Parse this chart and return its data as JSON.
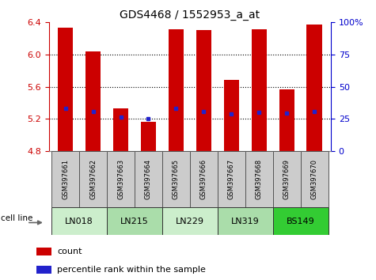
{
  "title": "GDS4468 / 1552953_a_at",
  "samples": [
    "GSM397661",
    "GSM397662",
    "GSM397663",
    "GSM397664",
    "GSM397665",
    "GSM397666",
    "GSM397667",
    "GSM397668",
    "GSM397669",
    "GSM397670"
  ],
  "cell_lines": [
    "LN018",
    "LN215",
    "LN229",
    "LN319",
    "BS149"
  ],
  "cell_line_groups": [
    2,
    2,
    2,
    2,
    2
  ],
  "bar_bottom": 4.8,
  "count_values": [
    6.33,
    6.04,
    5.33,
    5.17,
    6.31,
    6.3,
    5.69,
    6.31,
    5.57,
    6.37
  ],
  "percentile_values": [
    5.33,
    5.29,
    5.22,
    5.2,
    5.33,
    5.29,
    5.26,
    5.28,
    5.27,
    5.29
  ],
  "ylim_left": [
    4.8,
    6.4
  ],
  "yticks_left": [
    4.8,
    5.2,
    5.6,
    6.0,
    6.4
  ],
  "yticks_right": [
    0,
    25,
    50,
    75,
    100
  ],
  "bar_color": "#cc0000",
  "dot_color": "#2222cc",
  "grid_color": "#000000",
  "cell_line_colors": [
    "#cceecc",
    "#aaddaa",
    "#cceecc",
    "#aaddaa",
    "#33cc33"
  ],
  "sample_box_color": "#cccccc",
  "sample_box_edge": "#555555",
  "bg_color": "#ffffff",
  "tick_color_left": "#cc0000",
  "tick_color_right": "#0000cc",
  "bar_width": 0.55,
  "legend_count": "count",
  "legend_percentile": "percentile rank within the sample"
}
